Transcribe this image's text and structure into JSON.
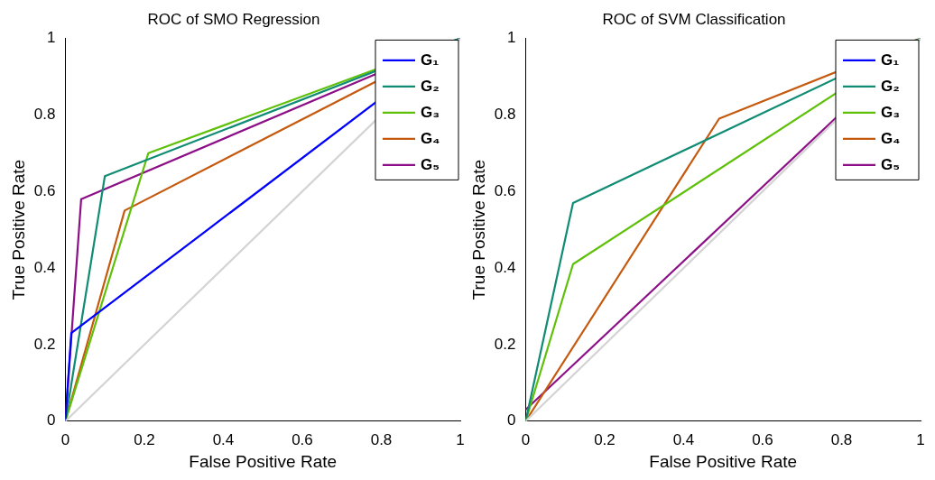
{
  "chart_data": [
    {
      "type": "line",
      "title": "ROC of SMO Regression",
      "xlabel": "False Positive Rate",
      "ylabel": "True Positive Rate",
      "xlim": [
        0,
        1
      ],
      "ylim": [
        0,
        1
      ],
      "xticks": [
        0,
        0.2,
        0.4,
        0.6,
        0.8,
        1
      ],
      "yticks": [
        0,
        0.2,
        0.4,
        0.6,
        0.8,
        1
      ],
      "grid": false,
      "legend": "top right",
      "marker": "none",
      "line_style": "solid",
      "series": [
        {
          "color": "#d3d3d3",
          "x": [
            0,
            1
          ],
          "values": [
            0,
            1
          ]
        },
        {
          "name": "G₁",
          "color": "#0000ff",
          "x": [
            0,
            0.015,
            1
          ],
          "values": [
            0,
            0.23,
            1
          ]
        },
        {
          "name": "G₂",
          "color": "#0f8c73",
          "x": [
            0,
            0.1,
            1
          ],
          "values": [
            0,
            0.64,
            1
          ]
        },
        {
          "name": "G₃",
          "color": "#5fc00a",
          "x": [
            0,
            0.21,
            1
          ],
          "values": [
            0,
            0.7,
            1
          ]
        },
        {
          "name": "G₄",
          "color": "#c55a0f",
          "x": [
            0,
            0.15,
            1
          ],
          "values": [
            0,
            0.55,
            1
          ]
        },
        {
          "name": "G₅",
          "color": "#8c0f87",
          "x": [
            0,
            0.04,
            1
          ],
          "values": [
            0,
            0.58,
            1
          ]
        }
      ]
    },
    {
      "type": "line",
      "title": "ROC of SVM Classification",
      "xlabel": "False Positive Rate",
      "ylabel": "True Positive Rate",
      "xlim": [
        0,
        1
      ],
      "ylim": [
        0,
        1
      ],
      "xticks": [
        0,
        0.2,
        0.4,
        0.6,
        0.8,
        1
      ],
      "yticks": [
        0,
        0.2,
        0.4,
        0.6,
        0.8,
        1
      ],
      "grid": false,
      "legend": "top right",
      "marker": "none",
      "line_style": "solid",
      "series": [
        {
          "color": "#d3d3d3",
          "x": [
            0,
            1
          ],
          "values": [
            0,
            1
          ]
        },
        {
          "name": "G₁",
          "color": "#0000ff"
        },
        {
          "name": "G₂",
          "color": "#0f8c73",
          "x": [
            0,
            0.12,
            1
          ],
          "values": [
            0,
            0.57,
            1
          ]
        },
        {
          "name": "G₃",
          "color": "#5fc00a",
          "x": [
            0,
            0.12,
            1
          ],
          "values": [
            0,
            0.41,
            1
          ]
        },
        {
          "name": "G₄",
          "color": "#c55a0f",
          "x": [
            0,
            0.49,
            1
          ],
          "values": [
            0,
            0.79,
            1
          ]
        },
        {
          "name": "G₅",
          "color": "#8c0f87",
          "x": [
            0,
            1
          ],
          "values": [
            0.03,
            1
          ]
        }
      ]
    }
  ]
}
